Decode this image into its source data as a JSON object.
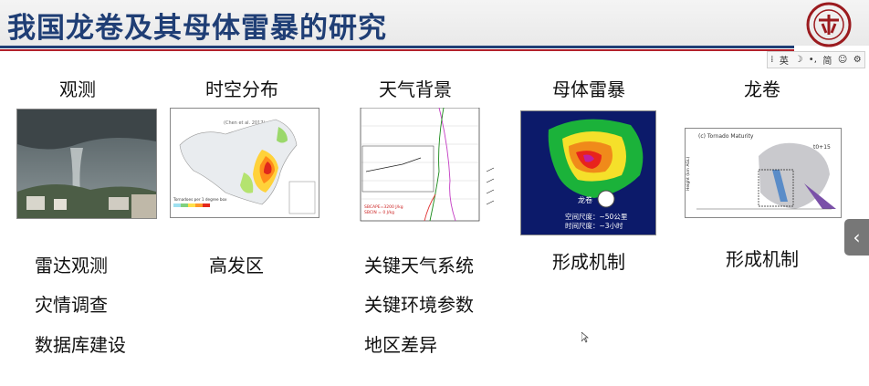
{
  "slide": {
    "title": "我国龙卷及其母体雷暴的研究"
  },
  "ime_toolbar": {
    "mode": "英",
    "simplified": "简"
  },
  "columns": [
    {
      "heading": "观测",
      "items": [
        "雷达观测",
        "灾情调查",
        "数据库建设"
      ]
    },
    {
      "heading": "时空分布",
      "items": [
        "高发区"
      ],
      "map_caption": "Tornadoes per 1 degree box",
      "map_credit": "(Chen et al. 2017)"
    },
    {
      "heading": "天气背景",
      "items": [
        "关键天气系统",
        "关键环境参数",
        "地区差异"
      ],
      "sounding_labels": [
        "SBCAPE=3200 J/kg",
        "SBCIN = 0 J/kg"
      ]
    },
    {
      "heading": "母体雷暴",
      "items": [
        "形成机制"
      ],
      "radar_label": "龙卷",
      "radar_scales": [
        "空间尺度：~50公里",
        "时间尺度：~3小时"
      ]
    },
    {
      "heading": "龙卷",
      "items": [
        "形成机制"
      ],
      "panel_title": "(c) Tornado Maturity",
      "panel_time": "t0+15",
      "panel_ylabel": "Height (km AGL)"
    }
  ],
  "colors": {
    "title": "#1f3e75",
    "rule_red": "#b3202a"
  },
  "icons": {
    "logo": "pku-seal-icon",
    "side": "chevron-left-icon"
  }
}
